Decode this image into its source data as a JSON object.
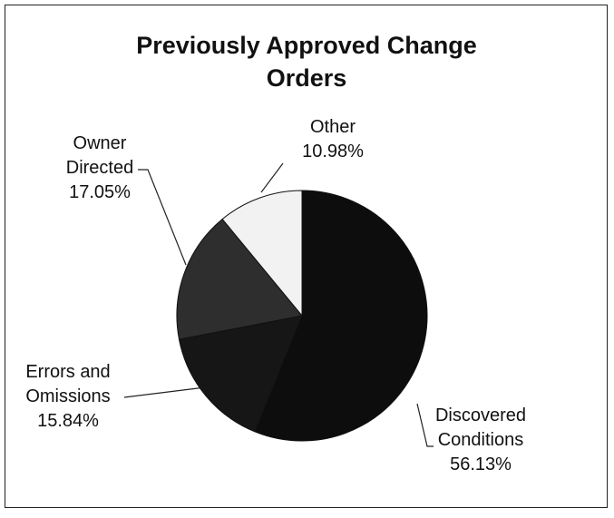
{
  "chart_data": {
    "type": "pie",
    "title": "Previously Approved Change Orders",
    "categories": [
      "Discovered Conditions",
      "Errors and Omissions",
      "Owner Directed",
      "Other"
    ],
    "values": [
      56.13,
      15.84,
      17.05,
      10.98
    ],
    "value_labels": [
      "56.13%",
      "15.84%",
      "17.05%",
      "10.98%"
    ],
    "colors": [
      "#0d0d0d",
      "#161616",
      "#2e2e2e",
      "#f2f2f2"
    ]
  }
}
